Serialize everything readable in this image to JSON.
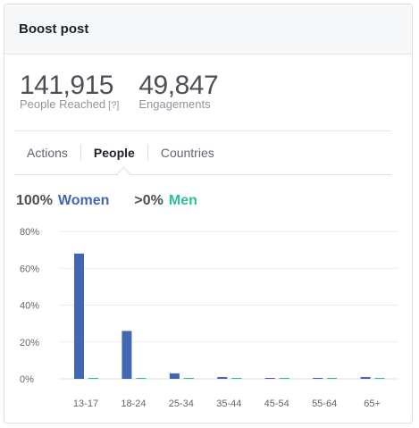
{
  "header": {
    "title": "Boost post"
  },
  "stats": {
    "reach_value": "141,915",
    "reach_label": "People Reached",
    "reach_help": "[?]",
    "engagement_value": "49,847",
    "engagement_label": "Engagements"
  },
  "tabs": [
    {
      "label": "Actions"
    },
    {
      "label": "People"
    },
    {
      "label": "Countries"
    }
  ],
  "legend": {
    "women_value": "100%",
    "women_label": "Women",
    "men_value": ">0%",
    "men_label": "Men"
  },
  "colors": {
    "women": "#4267b2",
    "men": "#2bbf9c",
    "grid": "#e9ebee"
  },
  "chart_data": {
    "type": "bar",
    "categories": [
      "13-17",
      "18-24",
      "25-34",
      "35-44",
      "45-54",
      "55-64",
      "65+"
    ],
    "series": [
      {
        "name": "Women",
        "values": [
          68,
          26,
          3,
          1,
          0.5,
          0.5,
          1
        ]
      },
      {
        "name": "Men",
        "values": [
          0.5,
          0.5,
          0.5,
          0.5,
          0.5,
          0.5,
          0.5
        ]
      }
    ],
    "ylim": [
      0,
      80
    ],
    "yticks": [
      0,
      20,
      40,
      60,
      80
    ],
    "ytick_labels": [
      "0%",
      "20%",
      "40%",
      "60%",
      "80%"
    ],
    "grid": true
  }
}
